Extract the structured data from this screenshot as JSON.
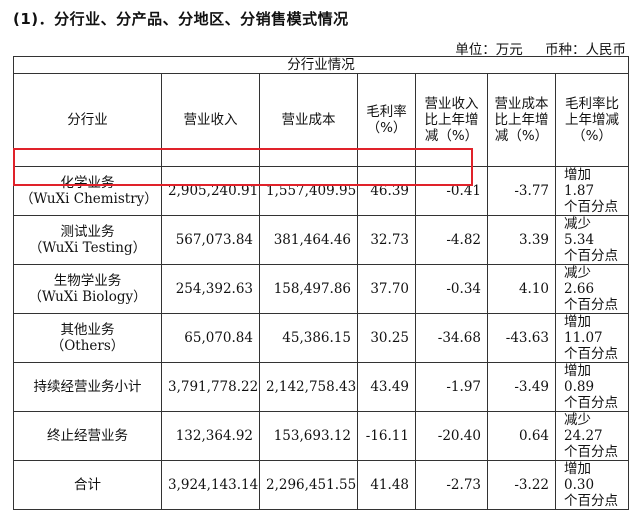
{
  "section_title": "(1)．分行业、分产品、分地区、分销售模式情况",
  "unit": {
    "label": "单位：",
    "value": "万元",
    "currency_label": "币种：",
    "currency_value": "人民币"
  },
  "table": {
    "caption": "分行业情况",
    "headers": [
      "分行业",
      "营业收入",
      "营业成本",
      "毛利率（%）",
      "营业收入比上年增减（%）",
      "营业成本比上年增减（%）",
      "毛利率比上年增减（%）"
    ],
    "rows": [
      {
        "segment_cn": "化学业务",
        "segment_en": "（WuXi Chemistry）",
        "revenue": "2,905,240.91",
        "cost": "1,557,409.95",
        "margin": "46.39",
        "rev_change": "-0.41",
        "cost_change": "-3.77",
        "margin_change_1": "增加 1.87",
        "margin_change_2": "个百分点"
      },
      {
        "segment_cn": "测试业务",
        "segment_en": "（WuXi Testing）",
        "revenue": "567,073.84",
        "cost": "381,464.46",
        "margin": "32.73",
        "rev_change": "-4.82",
        "cost_change": "3.39",
        "margin_change_1": "减少 5.34",
        "margin_change_2": "个百分点"
      },
      {
        "segment_cn": "生物学业务",
        "segment_en": "（WuXi Biology）",
        "revenue": "254,392.63",
        "cost": "158,497.86",
        "margin": "37.70",
        "rev_change": "-0.34",
        "cost_change": "4.10",
        "margin_change_1": "减少 2.66",
        "margin_change_2": "个百分点"
      },
      {
        "segment_cn": "其他业务",
        "segment_en": "（Others）",
        "revenue": "65,070.84",
        "cost": "45,386.15",
        "margin": "30.25",
        "rev_change": "-34.68",
        "cost_change": "-43.63",
        "margin_change_1": "增加 11.07",
        "margin_change_2": "个百分点"
      },
      {
        "segment_cn": "持续经营业务小计",
        "segment_en": "",
        "revenue": "3,791,778.22",
        "cost": "2,142,758.43",
        "margin": "43.49",
        "rev_change": "-1.97",
        "cost_change": "-3.49",
        "margin_change_1": "增加 0.89",
        "margin_change_2": "个百分点"
      },
      {
        "segment_cn": "终止经营业务",
        "segment_en": "",
        "revenue": "132,364.92",
        "cost": "153,693.12",
        "margin": "-16.11",
        "rev_change": "-20.40",
        "cost_change": "0.64",
        "margin_change_1": "减少 24.27",
        "margin_change_2": "个百分点"
      },
      {
        "segment_cn": "合计",
        "segment_en": "",
        "revenue": "3,924,143.14",
        "cost": "2,296,451.55",
        "margin": "41.48",
        "rev_change": "-2.73",
        "cost_change": "-3.22",
        "margin_change_1": "增加 0.30",
        "margin_change_2": "个百分点"
      }
    ]
  },
  "highlight_color": "#e0222a"
}
